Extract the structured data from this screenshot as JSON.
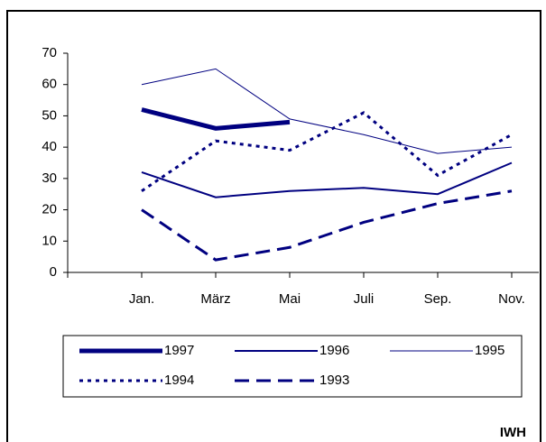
{
  "chart_data": {
    "type": "line",
    "categories": [
      "Jan.",
      "März",
      "Mai",
      "Juli",
      "Sep.",
      "Nov."
    ],
    "series": [
      {
        "name": "1997",
        "color": "#000080",
        "width": 5,
        "dash": "none",
        "values": [
          52,
          46,
          48,
          null,
          null,
          null
        ]
      },
      {
        "name": "1996",
        "color": "#000080",
        "width": 2,
        "dash": "none",
        "values": [
          32,
          24,
          26,
          27,
          25,
          35
        ]
      },
      {
        "name": "1995",
        "color": "#000080",
        "width": 1,
        "dash": "none",
        "values": [
          60,
          65,
          49,
          44,
          38,
          40
        ]
      },
      {
        "name": "1994",
        "color": "#000080",
        "width": 3,
        "dash": "4 5",
        "values": [
          26,
          42,
          39,
          51,
          31,
          44
        ]
      },
      {
        "name": "1993",
        "color": "#000080",
        "width": 3,
        "dash": "16 8",
        "values": [
          20,
          4,
          8,
          16,
          22,
          26
        ]
      }
    ],
    "ylim": [
      0,
      70
    ],
    "yticks": [
      0,
      10,
      20,
      30,
      40,
      50,
      60,
      70
    ],
    "source": "IWH"
  }
}
